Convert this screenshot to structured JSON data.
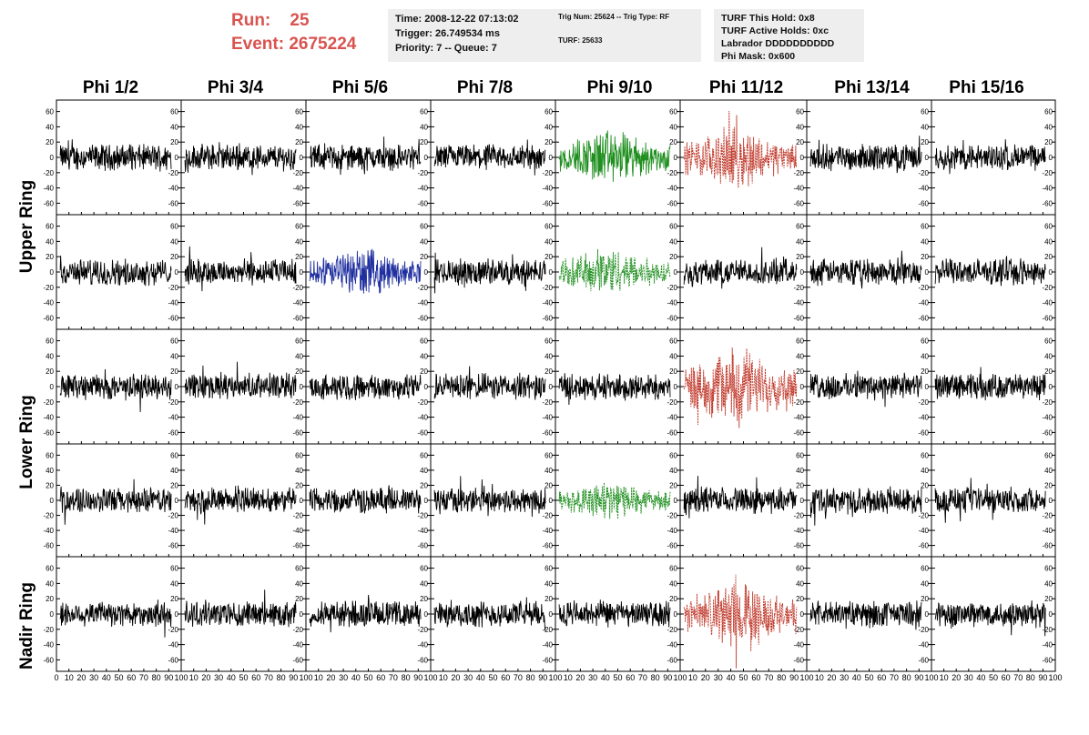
{
  "header": {
    "run_label": "Run:",
    "run_value": "25",
    "event_label": "Event:",
    "event_value": "2675224",
    "time_line": "Time: 2008-12-22 07:13:02",
    "trigger_line": "Trigger: 26.749534 ms",
    "priority_line": "Priority: 7 -- Queue: 7",
    "trig_line": "Trig Num: 25624 -- Trig Type: RF",
    "turf_line": "TURF: 25633",
    "turf_hold_line": "TURF This Hold: 0x8",
    "turf_active_line": "TURF Active Holds: 0xc",
    "labrador_line": "Labrador DDDDDDDDDD",
    "phi_mask_line": "Phi Mask: 0x600"
  },
  "columns": [
    "Phi 1/2",
    "Phi 3/4",
    "Phi 5/6",
    "Phi 7/8",
    "Phi 9/10",
    "Phi 11/12",
    "Phi 13/14",
    "Phi 15/16"
  ],
  "rings": [
    "Upper Ring",
    "Lower Ring",
    "Nadir Ring"
  ],
  "colors": {
    "black": "#000000",
    "green": "#1f8f1f",
    "red": "#c0392b",
    "blue": "#1f2f9f",
    "title_red": "#d9534f",
    "info_bg": "#eeeeee"
  },
  "chart_data": {
    "type": "line",
    "description_units": "ADC-like voltage trace vs sample index",
    "xlim": [
      0,
      100
    ],
    "ylim": [
      -75,
      75
    ],
    "x_ticks": [
      0,
      10,
      20,
      30,
      40,
      50,
      60,
      70,
      80,
      90,
      100
    ],
    "x_tick_labels": [
      "0",
      "10",
      "20",
      "30",
      "40",
      "50",
      "60",
      "70",
      "80",
      "90",
      "100"
    ],
    "y_ticks": [
      -60,
      -40,
      -20,
      0,
      20,
      40,
      60
    ],
    "y_tick_labels": [
      "-60",
      "-40",
      "-20",
      "0",
      "20",
      "40",
      "60"
    ],
    "rows": 5,
    "cols": 8,
    "highlighted": [
      {
        "row": 0,
        "col": 4,
        "color": "green",
        "style": "solid",
        "amplitude": 26
      },
      {
        "row": 0,
        "col": 5,
        "color": "red",
        "style": "dashed",
        "amplitude": 28
      },
      {
        "row": 1,
        "col": 2,
        "color": "blue",
        "style": "solid",
        "amplitude": 22
      },
      {
        "row": 1,
        "col": 4,
        "color": "green",
        "style": "dashed",
        "amplitude": 22
      },
      {
        "row": 2,
        "col": 5,
        "color": "red",
        "style": "dashed",
        "amplitude": 36
      },
      {
        "row": 3,
        "col": 4,
        "color": "green",
        "style": "dashed",
        "amplitude": 18
      },
      {
        "row": 4,
        "col": 5,
        "color": "red",
        "style": "dashed",
        "amplitude": 30
      }
    ],
    "default_amplitude": 14,
    "samples_per_trace": 260
  }
}
